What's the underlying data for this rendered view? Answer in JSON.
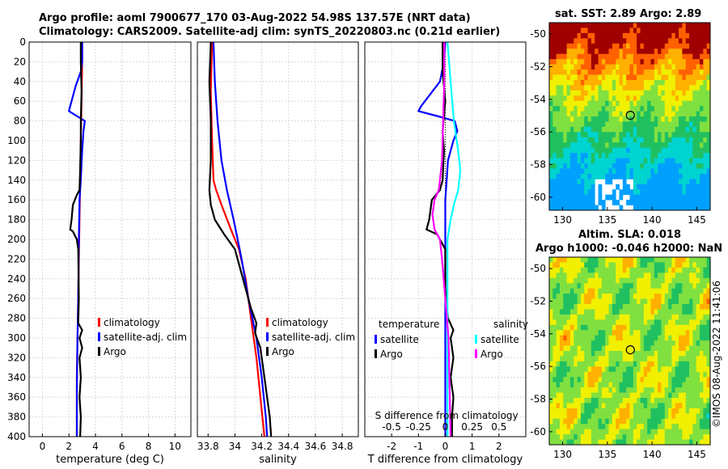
{
  "title_line1": "Argo profile: aoml 7900677_170 03-Aug-2022 54.98S 137.57E (NRT data)",
  "title_line2": "Climatology: CARS2009. Satellite-adj clim: synTS_20220803.nc (0.21d earlier)",
  "sst_title": "sat. SST: 2.89 Argo: 2.89",
  "sla_title_line1": "Altim. SLA: 0.018",
  "sla_title_line2": "Argo h1000: -0.046 h2000: NaN",
  "watermark": "©IMOS 08-Aug-2022 11:41:06",
  "colors": {
    "climatology": "#ff0000",
    "satellite": "#0000ff",
    "argo": "#000000",
    "sat_salinity": "#00ffff",
    "argo_salinity": "#ff00ff"
  },
  "chart_data": [
    {
      "type": "line",
      "id": "temperature",
      "xlabel": "temperature (deg C)",
      "ylabel": "",
      "xlim": [
        -1,
        11.2
      ],
      "ylim": [
        0,
        400
      ],
      "y_reversed": true,
      "x_ticks": [
        0,
        2,
        4,
        6,
        8,
        10
      ],
      "y_ticks": [
        0,
        20,
        40,
        60,
        80,
        100,
        120,
        140,
        160,
        180,
        200,
        220,
        240,
        260,
        280,
        300,
        320,
        340,
        360,
        380,
        400
      ],
      "grid": true,
      "legend": {
        "position": "center-right",
        "entries": [
          "climatology",
          "satellite-adj. clim",
          "Argo"
        ]
      },
      "series": [
        {
          "name": "climatology",
          "color": "#ff0000",
          "points": [
            [
              3.0,
              0
            ],
            [
              3.0,
              20
            ],
            [
              2.95,
              60
            ],
            [
              2.9,
              100
            ],
            [
              2.85,
              140
            ],
            [
              2.8,
              180
            ],
            [
              2.75,
              220
            ],
            [
              2.7,
              260
            ],
            [
              2.65,
              300
            ],
            [
              2.6,
              340
            ],
            [
              2.6,
              400
            ]
          ]
        },
        {
          "name": "satellite-adj. clim",
          "color": "#0000ff",
          "points": [
            [
              3.0,
              0
            ],
            [
              3.0,
              20
            ],
            [
              2.9,
              30
            ],
            [
              2.5,
              45
            ],
            [
              2.1,
              65
            ],
            [
              2.0,
              70
            ],
            [
              2.6,
              75
            ],
            [
              3.2,
              80
            ],
            [
              3.1,
              90
            ],
            [
              3.0,
              110
            ],
            [
              2.9,
              140
            ],
            [
              2.8,
              160
            ],
            [
              2.75,
              200
            ],
            [
              2.7,
              260
            ],
            [
              2.65,
              300
            ],
            [
              2.6,
              350
            ],
            [
              2.6,
              400
            ]
          ]
        },
        {
          "name": "Argo",
          "color": "#000000",
          "points": [
            [
              2.9,
              0
            ],
            [
              2.9,
              20
            ],
            [
              2.95,
              50
            ],
            [
              2.9,
              80
            ],
            [
              2.9,
              100
            ],
            [
              2.85,
              130
            ],
            [
              2.8,
              150
            ],
            [
              2.6,
              155
            ],
            [
              2.3,
              165
            ],
            [
              2.2,
              180
            ],
            [
              2.1,
              190
            ],
            [
              2.3,
              192
            ],
            [
              2.6,
              200
            ],
            [
              2.7,
              210
            ],
            [
              2.75,
              260
            ],
            [
              2.7,
              285
            ],
            [
              3.0,
              292
            ],
            [
              2.8,
              300
            ],
            [
              3.0,
              310
            ],
            [
              2.8,
              320
            ],
            [
              2.9,
              340
            ],
            [
              2.8,
              360
            ],
            [
              2.9,
              380
            ],
            [
              2.85,
              400
            ]
          ]
        }
      ]
    },
    {
      "type": "line",
      "id": "salinity",
      "xlabel": "salinity",
      "ylabel": "",
      "xlim": [
        33.72,
        34.92
      ],
      "ylim": [
        0,
        400
      ],
      "y_reversed": true,
      "x_ticks": [
        33.8,
        34.0,
        34.2,
        34.4,
        34.6,
        34.8
      ],
      "x_tick_labels": [
        "33.8",
        "34",
        "34.2",
        "34.4",
        "34.6",
        "34.8"
      ],
      "grid": true,
      "legend": {
        "position": "center-right",
        "entries": [
          "climatology",
          "satellite-adj. clim",
          "Argo"
        ]
      },
      "series": [
        {
          "name": "climatology",
          "color": "#ff0000",
          "points": [
            [
              33.83,
              0
            ],
            [
              33.82,
              50
            ],
            [
              33.83,
              100
            ],
            [
              33.84,
              140
            ],
            [
              33.86,
              150
            ],
            [
              33.9,
              165
            ],
            [
              33.97,
              190
            ],
            [
              34.03,
              210
            ],
            [
              34.08,
              240
            ],
            [
              34.12,
              280
            ],
            [
              34.16,
              320
            ],
            [
              34.19,
              360
            ],
            [
              34.22,
              400
            ]
          ]
        },
        {
          "name": "satellite-adj. clim",
          "color": "#0000ff",
          "points": [
            [
              33.84,
              0
            ],
            [
              33.85,
              40
            ],
            [
              33.87,
              80
            ],
            [
              33.9,
              120
            ],
            [
              33.94,
              150
            ],
            [
              33.99,
              180
            ],
            [
              34.02,
              200
            ],
            [
              34.05,
              220
            ],
            [
              34.1,
              260
            ],
            [
              34.16,
              300
            ],
            [
              34.2,
              340
            ],
            [
              34.23,
              380
            ],
            [
              34.24,
              400
            ]
          ]
        },
        {
          "name": "Argo",
          "color": "#000000",
          "points": [
            [
              33.82,
              0
            ],
            [
              33.81,
              40
            ],
            [
              33.82,
              80
            ],
            [
              33.82,
              120
            ],
            [
              33.81,
              150
            ],
            [
              33.82,
              165
            ],
            [
              33.85,
              180
            ],
            [
              33.92,
              195
            ],
            [
              34.0,
              210
            ],
            [
              34.06,
              240
            ],
            [
              34.12,
              270
            ],
            [
              34.16,
              285
            ],
            [
              34.15,
              295
            ],
            [
              34.19,
              310
            ],
            [
              34.22,
              340
            ],
            [
              34.24,
              360
            ],
            [
              34.26,
              380
            ],
            [
              34.27,
              400
            ]
          ]
        }
      ]
    },
    {
      "type": "line",
      "id": "difference",
      "xlabel": "T difference from climatology",
      "top_label": "S difference from climatology",
      "xlim": [
        -3,
        3
      ],
      "ylim": [
        0,
        400
      ],
      "y_reversed": true,
      "x_ticks": [
        -2,
        -1,
        0,
        1,
        2
      ],
      "top_ticks": [
        -0.5,
        -0.25,
        0,
        0.25,
        0.5
      ],
      "top_tick_labels": [
        "-0.5",
        "-0.25",
        "0",
        "0.25",
        "0.5"
      ],
      "grid": true,
      "legend": {
        "position": "center",
        "groups": [
          {
            "title": "temperature",
            "entries": [
              "satellite",
              "Argo"
            ]
          },
          {
            "title": "salinity",
            "entries": [
              "satellite",
              "Argo"
            ]
          }
        ]
      },
      "series": [
        {
          "name": "temperature satellite",
          "color": "#0000ff",
          "points": [
            [
              0,
              0
            ],
            [
              -0.05,
              20
            ],
            [
              -0.2,
              40
            ],
            [
              -0.9,
              65
            ],
            [
              -1.0,
              70
            ],
            [
              -0.3,
              75
            ],
            [
              0.35,
              80
            ],
            [
              0.45,
              90
            ],
            [
              0.3,
              100
            ],
            [
              0.1,
              120
            ],
            [
              0.05,
              140
            ],
            [
              0.0,
              160
            ],
            [
              0.0,
              200
            ],
            [
              0.0,
              300
            ],
            [
              0.0,
              400
            ]
          ]
        },
        {
          "name": "temperature Argo",
          "color": "#000000",
          "points": [
            [
              -0.1,
              0
            ],
            [
              -0.1,
              30
            ],
            [
              0,
              60
            ],
            [
              -0.1,
              90
            ],
            [
              -0.05,
              110
            ],
            [
              -0.1,
              140
            ],
            [
              -0.2,
              150
            ],
            [
              -0.5,
              160
            ],
            [
              -0.6,
              180
            ],
            [
              -0.7,
              190
            ],
            [
              -0.3,
              195
            ],
            [
              0,
              210
            ],
            [
              0,
              250
            ],
            [
              0.1,
              280
            ],
            [
              0.3,
              292
            ],
            [
              0.2,
              300
            ],
            [
              0.3,
              320
            ],
            [
              0.2,
              340
            ],
            [
              0.3,
              360
            ],
            [
              0.25,
              380
            ],
            [
              0.25,
              400
            ]
          ]
        },
        {
          "name": "salinity satellite",
          "color": "#00ffff",
          "points": [
            [
              0.02,
              0
            ],
            [
              0.05,
              40
            ],
            [
              0.08,
              80
            ],
            [
              0.12,
              110
            ],
            [
              0.14,
              130
            ],
            [
              0.12,
              150
            ],
            [
              0.08,
              165
            ],
            [
              0.05,
              180
            ],
            [
              0.02,
              200
            ],
            [
              0.02,
              300
            ],
            [
              0.02,
              400
            ]
          ]
        },
        {
          "name": "salinity Argo",
          "color": "#ff00ff",
          "points": [
            [
              -0.01,
              0
            ],
            [
              -0.01,
              40
            ],
            [
              -0.02,
              80
            ],
            [
              -0.03,
              120
            ],
            [
              -0.06,
              150
            ],
            [
              -0.1,
              160
            ],
            [
              -0.12,
              175
            ],
            [
              -0.1,
              190
            ],
            [
              -0.05,
              200
            ],
            [
              -0.03,
              220
            ],
            [
              0,
              260
            ],
            [
              0.03,
              300
            ],
            [
              0.04,
              350
            ],
            [
              0.05,
              400
            ]
          ]
        }
      ]
    },
    {
      "type": "heatmap",
      "id": "sst_map",
      "title": "sat. SST: 2.89 Argo: 2.89",
      "xlim": [
        128.5,
        146.5
      ],
      "ylim": [
        -60.8,
        -49.3
      ],
      "x_ticks": [
        130,
        135,
        140,
        145
      ],
      "y_ticks": [
        -50,
        -52,
        -54,
        -56,
        -58,
        -60
      ],
      "marker": {
        "lon": 137.57,
        "lat": -54.98
      }
    },
    {
      "type": "heatmap",
      "id": "sla_map",
      "title": "Altim. SLA: 0.018 / Argo h1000: -0.046 h2000: NaN",
      "xlim": [
        128.5,
        146.5
      ],
      "ylim": [
        -60.8,
        -49.3
      ],
      "x_ticks": [
        130,
        135,
        140,
        145
      ],
      "y_ticks": [
        -50,
        -52,
        -54,
        -56,
        -58,
        -60
      ],
      "marker": {
        "lon": 137.57,
        "lat": -54.98
      }
    }
  ]
}
